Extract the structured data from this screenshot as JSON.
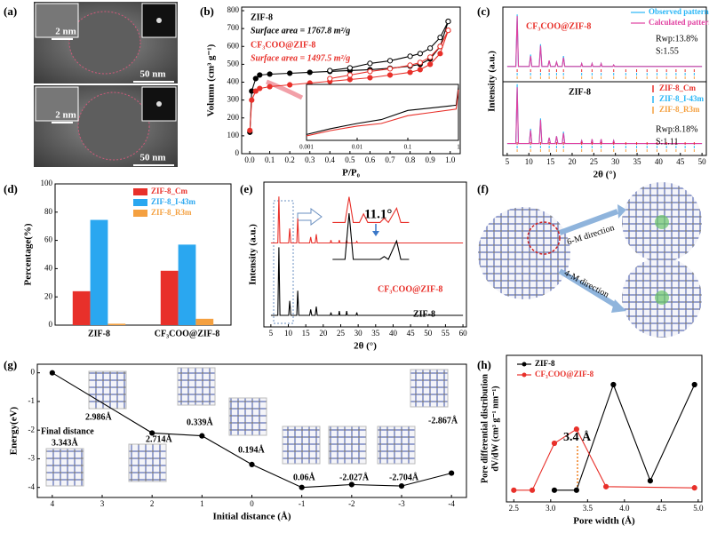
{
  "panel_labels": [
    "(a)",
    "(b)",
    "(c)",
    "(d)",
    "(e)",
    "(f)",
    "(g)",
    "(h)"
  ],
  "images": {
    "a": {
      "scale_bars": [
        "2 nm",
        "50 nm",
        "2 nm",
        "50 nm"
      ]
    },
    "f": {
      "labels": [
        "6-M direction",
        "4-M direction"
      ]
    }
  },
  "chart_data": [
    {
      "type": "line",
      "xlabel": "P/P₀",
      "ylabel": "Volumn (cm³ g⁻¹)",
      "xlim": [
        -0.04,
        1.05
      ],
      "ylim": [
        0,
        820
      ],
      "xticks": [
        {
          "value": 0,
          "label": "0.0"
        },
        0.1,
        0.2,
        0.3,
        0.4,
        0.5,
        0.6,
        0.7,
        0.8,
        0.9,
        {
          "value": 1,
          "label": "1.0"
        }
      ],
      "yticks": [
        0,
        100,
        200,
        300,
        400,
        500,
        600,
        700,
        800
      ],
      "annotations": [
        "ZIF-8",
        "Surface area = 1767.8 m²/g",
        "CF₃COO@ZIF-8",
        "Surface area = 1497.5 m²/g"
      ],
      "x": [
        0.001,
        0.01,
        0.03,
        0.05,
        0.1,
        0.2,
        0.3,
        0.4,
        0.5,
        0.6,
        0.7,
        0.8,
        0.85,
        0.9,
        0.95,
        0.99
      ],
      "series": [
        {
          "color": "#000000",
          "marker": "filled",
          "values": [
            120,
            350,
            420,
            440,
            445,
            450,
            455,
            460,
            465,
            470,
            478,
            490,
            500,
            530,
            600,
            740
          ]
        },
        {
          "color": "#000000",
          "marker": "open",
          "x": [
            0.99,
            0.95,
            0.9,
            0.85,
            0.8,
            0.7,
            0.6,
            0.5,
            0.4
          ],
          "values": [
            740,
            650,
            590,
            560,
            545,
            520,
            505,
            480,
            465
          ]
        },
        {
          "color": "#e8302a",
          "marker": "filled",
          "values": [
            130,
            300,
            350,
            365,
            375,
            385,
            395,
            405,
            415,
            425,
            440,
            455,
            470,
            500,
            560,
            690
          ]
        },
        {
          "color": "#e8302a",
          "marker": "open",
          "x": [
            0.99,
            0.95,
            0.9,
            0.85,
            0.8,
            0.7,
            0.6,
            0.5,
            0.4
          ],
          "values": [
            690,
            600,
            540,
            510,
            495,
            475,
            460,
            440,
            420
          ]
        }
      ]
    },
    {
      "type": "line",
      "xlog": true,
      "xlim": [
        0.001,
        1
      ],
      "ylim": [
        170,
        600
      ],
      "xticks": [
        0.001,
        0.01,
        0.1,
        1
      ],
      "x": [
        0.001,
        0.003,
        0.01,
        0.03,
        0.1,
        0.3,
        0.9,
        1
      ],
      "series": [
        {
          "color": "#000000",
          "values": [
            215,
            260,
            300,
            330,
            400,
            420,
            440,
            580
          ]
        },
        {
          "color": "#e8302a",
          "values": [
            205,
            245,
            280,
            300,
            360,
            385,
            410,
            560
          ]
        }
      ]
    },
    {
      "type": "line",
      "xlabel": "2θ (°)",
      "ylabel": "Intensity (a.u.)",
      "legend": true,
      "xlim": [
        4,
        51
      ],
      "ylim": [
        0,
        100
      ],
      "xticks": [
        5,
        10,
        15,
        20,
        25,
        30,
        35,
        40,
        45,
        50
      ],
      "annotations": [
        "CF₃COO@ZIF-8",
        "Rwp:13.8%",
        "S:1.55",
        "ZIF-8",
        "Rwp:8.18%",
        "S:1.11"
      ],
      "x": [
        5,
        7,
        7.3,
        7.6,
        10.1,
        10.4,
        10.7,
        12.4,
        12.7,
        13,
        14.4,
        14.7,
        15,
        16.1,
        16.4,
        16.7,
        17.7,
        18,
        18.3,
        22,
        22.2,
        22.4,
        24.4,
        24.6,
        24.8,
        26.5,
        26.7,
        26.9,
        29.4,
        29.6,
        29.8,
        50
      ],
      "series": [
        {
          "name": "Observed pattern",
          "color": "#29b6f6",
          "values": [
            60,
            60,
            95,
            60,
            60,
            68,
            60,
            60,
            75,
            60,
            60,
            64,
            60,
            60,
            63,
            60,
            60,
            67,
            60,
            60,
            62,
            60,
            60,
            62,
            60,
            60,
            62,
            60,
            60,
            61,
            60,
            60
          ]
        },
        {
          "name": "Calculated pattern",
          "color": "#e040a0",
          "values": [
            60,
            60,
            94,
            60,
            60,
            67,
            60,
            60,
            74,
            60,
            60,
            64,
            60,
            60,
            63,
            60,
            60,
            66,
            60,
            60,
            62,
            60,
            60,
            62,
            60,
            60,
            62,
            60,
            60,
            61,
            60,
            60
          ]
        },
        {
          "color": "#29b6f6",
          "values": [
            8,
            8,
            48,
            8,
            8,
            18,
            8,
            8,
            25,
            8,
            8,
            12,
            8,
            8,
            13,
            8,
            8,
            16,
            8,
            8,
            10,
            8,
            8,
            11,
            8,
            8,
            11,
            8,
            8,
            10,
            8,
            8
          ]
        },
        {
          "color": "#e040a0",
          "values": [
            8,
            8,
            46,
            8,
            8,
            17,
            8,
            8,
            24,
            8,
            8,
            12,
            8,
            8,
            13,
            8,
            8,
            15,
            8,
            8,
            10,
            8,
            8,
            11,
            8,
            8,
            11,
            8,
            8,
            10,
            8,
            8
          ]
        }
      ],
      "phases": [
        {
          "name": "ZIF-8_Cm",
          "color": "#e8302a",
          "positions": [
            7.3,
            10.4,
            12.7,
            14.7,
            16.4,
            18,
            22.2,
            24.6,
            26.7,
            29.6,
            32.4,
            34.9,
            37.3,
            39.6,
            41.8,
            44,
            46.1,
            48.2
          ]
        },
        {
          "name": "ZIF-8_I-43m",
          "color": "#29b6f6",
          "positions": [
            7.3,
            10.4,
            12.7,
            14.7,
            16.4,
            18,
            22.2,
            24.6,
            26.7,
            29.6,
            32.4,
            34.9,
            37.3,
            39.6,
            41.8,
            44,
            46.1,
            48.2
          ]
        },
        {
          "name": "ZIF-8_R3m",
          "color": "#f4a040",
          "positions": [
            7.3,
            10.4,
            12.7,
            14.7,
            16.4,
            18,
            22.2,
            24.6,
            26.7,
            29.6,
            32.4,
            34.9,
            37.3,
            39.6,
            41.8,
            44,
            46.1,
            48.2
          ]
        }
      ]
    },
    {
      "type": "bar",
      "ylabel": "Percentage(%)",
      "legend": true,
      "categories": [
        "ZIF-8",
        "CF₃COO@ZIF-8"
      ],
      "ylim": [
        0,
        100
      ],
      "yticks": [
        0,
        20,
        40,
        60,
        80,
        100
      ],
      "series": [
        {
          "name": "ZIF-8_Cm",
          "color": "#e8302a",
          "values": [
            24,
            38.5
          ]
        },
        {
          "name": "ZIF-8_I-43m",
          "color": "#2aa7f0",
          "values": [
            74.5,
            57
          ]
        },
        {
          "name": "ZIF-8_R3m",
          "color": "#f4a040",
          "values": [
            1,
            4.5
          ]
        }
      ]
    },
    {
      "type": "line",
      "xlabel": "2θ (°)",
      "ylabel": "Intensity (a.u.)",
      "xlim": [
        3,
        61
      ],
      "ylim": [
        0,
        100
      ],
      "xticks": [
        5,
        10,
        15,
        20,
        25,
        30,
        35,
        40,
        45,
        50,
        55,
        60
      ],
      "x": [
        5,
        7,
        7.3,
        7.6,
        10.1,
        10.4,
        10.7,
        12.4,
        12.7,
        13,
        16.1,
        16.4,
        16.7,
        17.7,
        18,
        18.3,
        22,
        22.2,
        22.4,
        24.4,
        24.6,
        24.8,
        26.5,
        26.7,
        26.9,
        29.4,
        29.6,
        29.8,
        60
      ],
      "series": [
        {
          "name": "CF₃COO@ZIF-8",
          "color": "#e8302a",
          "values": [
            58,
            58,
            90,
            58,
            58,
            68,
            58,
            58,
            75,
            58,
            58,
            62,
            58,
            58,
            64,
            58,
            58,
            60,
            58,
            58,
            60,
            58,
            58,
            60,
            58,
            58,
            59,
            58,
            58
          ]
        },
        {
          "name": "ZIF-8",
          "color": "#000000",
          "values": [
            8,
            8,
            55,
            8,
            8,
            18,
            8,
            8,
            25,
            8,
            8,
            12,
            8,
            8,
            14,
            8,
            8,
            10,
            8,
            8,
            11,
            8,
            8,
            11,
            8,
            8,
            10,
            8,
            8
          ]
        }
      ]
    },
    {
      "type": "line",
      "xlim": [
        9.5,
        13.5
      ],
      "ylim": [
        0,
        110
      ],
      "annotations": [
        "11.1°"
      ],
      "x": [
        9.6,
        10.2,
        10.4,
        10.6,
        10.9,
        11.1,
        11.3,
        11.9,
        12.1,
        12.3,
        12.7,
        12.9,
        13.3
      ],
      "series": [
        {
          "color": "#e8302a",
          "values": [
            62,
            62,
            98,
            62,
            62,
            74,
            62,
            62,
            68,
            62,
            82,
            62,
            62
          ]
        },
        {
          "color": "#000000",
          "values": [
            10,
            10,
            75,
            10,
            10,
            10,
            10,
            10,
            14,
            10,
            36,
            10,
            10
          ]
        }
      ]
    },
    {
      "type": "line",
      "xlabel": "Initial distance (Å)",
      "ylabel": "Energy(eV)",
      "xlim": [
        4.3,
        -4.3
      ],
      "ylim": [
        -4.35,
        0.3
      ],
      "xticks": [
        4,
        3,
        2,
        1,
        0,
        -1,
        -2,
        -3,
        -4
      ],
      "yticks": [
        0,
        -1,
        -2,
        -3,
        -4
      ],
      "annotations": [
        "Final distance",
        "3.343Å",
        "2.986Å",
        "2.714Å",
        "0.339Å",
        "0.194Å",
        "0.06Å",
        "-2.027Å",
        "-2.704Å",
        "-2.867Å"
      ],
      "x": [
        4,
        2,
        1,
        0,
        -1,
        -2,
        -3,
        -4
      ],
      "series": [
        {
          "color": "#000000",
          "marker": "filled",
          "values": [
            0,
            -2.1,
            -2.2,
            -3.2,
            -4.0,
            -3.9,
            -3.95,
            -3.5
          ]
        }
      ]
    },
    {
      "type": "line",
      "xlabel": "Pore width (Å)",
      "ylabel": [
        "Pore differential distribution",
        "dV/dW (cm³ g⁻¹ nm⁻¹)"
      ],
      "legend": true,
      "xlim": [
        2.4,
        5.05
      ],
      "ylim": [
        0,
        1.25
      ],
      "xticks": [
        2.5,
        {
          "value": 3,
          "label": "3.0"
        },
        3.5,
        {
          "value": 4,
          "label": "4.0"
        },
        4.5,
        {
          "value": 5,
          "label": "5.0"
        }
      ],
      "annotations": [
        "3.4 Å"
      ],
      "series": [
        {
          "name": "ZIF-8",
          "color": "#000000",
          "marker": "filled",
          "x": [
            3.05,
            3.35,
            3.85,
            4.35,
            4.95
          ],
          "values": [
            0.1,
            0.1,
            1.0,
            0.18,
            1.0
          ]
        },
        {
          "name": "CF₃COO@ZIF-8",
          "color": "#e8302a",
          "marker": "filled",
          "x": [
            2.5,
            2.75,
            3.05,
            3.35,
            3.75,
            4.95
          ],
          "values": [
            0.1,
            0.1,
            0.5,
            0.62,
            0.13,
            0.12
          ]
        }
      ]
    }
  ]
}
